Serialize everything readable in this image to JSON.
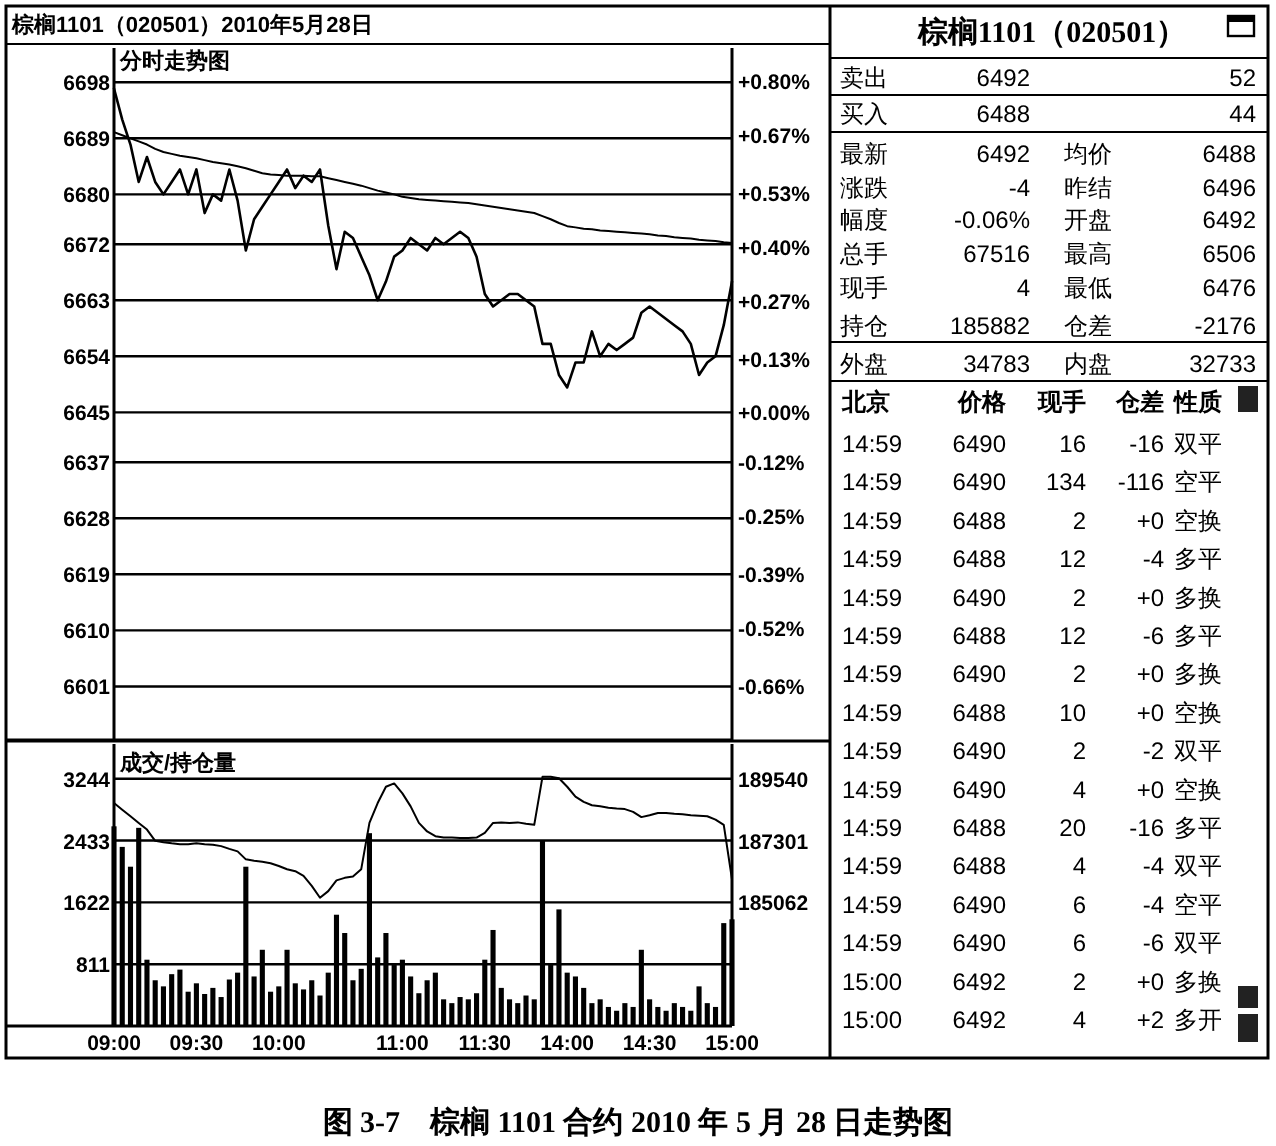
{
  "chart_data": [
    {
      "type": "line",
      "title": "分时走势图",
      "annotations": [
        "棕榈1101（020501）2010年5月28日",
        "图 3-7　棕榈 1101 合约 2010 年 5 月 28 日走势图"
      ],
      "categories": [
        null,
        null,
        null,
        null,
        null,
        null,
        null,
        null,
        null,
        null,
        null,
        null,
        null,
        null,
        null,
        null,
        null,
        null,
        null,
        null,
        null,
        null,
        null,
        null,
        null,
        null,
        null,
        null,
        null,
        null,
        null,
        null,
        null,
        null,
        null,
        null,
        null,
        null,
        null,
        null,
        null,
        null,
        null,
        null,
        null,
        null,
        null,
        null,
        null,
        null,
        null,
        null,
        null,
        null,
        null,
        null,
        null,
        null,
        null,
        null,
        null,
        null,
        null,
        null,
        null,
        null,
        null,
        null,
        null,
        null,
        null,
        null,
        null,
        null,
        null,
        null
      ],
      "series": [
        {
          "color": "#000000",
          "values": [
            6697,
            6692,
            6688,
            6682,
            6686,
            6682,
            6680,
            6682,
            6684,
            6680,
            6684,
            6677,
            6680,
            6679,
            6684,
            6679,
            6671,
            6676,
            6678,
            6680,
            6682,
            6684,
            6681,
            6683,
            6682,
            6684,
            6675,
            6668,
            6674,
            6673,
            6670,
            6667,
            6663,
            6666,
            6670,
            6671,
            6673,
            6672,
            6671,
            6673,
            6672,
            6673,
            6674,
            6673,
            6670,
            6664,
            6662,
            6663,
            6664,
            6664,
            6663,
            6662,
            6656,
            6656,
            6651,
            6649,
            6653,
            6653,
            6658,
            6654,
            6656,
            6655,
            6656,
            6657,
            6661,
            6662,
            6661,
            6660,
            6659,
            6658,
            6656,
            6651,
            6653,
            6654,
            6659,
            6666
          ]
        },
        {
          "color": "#000000",
          "values": [
            6690,
            6689.5,
            6689,
            6688.5,
            6688,
            6687.3,
            6686.8,
            6686.5,
            6686.2,
            6686,
            6685.8,
            6685.5,
            6685.2,
            6685,
            6684.8,
            6684.5,
            6684.2,
            6683.8,
            6683.4,
            6683.2,
            6683.1,
            6683,
            6683,
            6683,
            6682.9,
            6682.9,
            6682.6,
            6682.3,
            6682,
            6681.7,
            6681.4,
            6681,
            6680.6,
            6680.3,
            6680,
            6679.6,
            6679.4,
            6679.2,
            6679.1,
            6679,
            6678.9,
            6678.8,
            6678.7,
            6678.6,
            6678.4,
            6678.2,
            6678,
            6677.8,
            6677.6,
            6677.4,
            6677.2,
            6677,
            6676.5,
            6676,
            6675.4,
            6674.9,
            6674.7,
            6674.5,
            6674.4,
            6674.2,
            6674.1,
            6674,
            6673.9,
            6673.8,
            6673.7,
            6673.6,
            6673.4,
            6673.3,
            6673.1,
            6673,
            6672.9,
            6672.7,
            6672.6,
            6672.5,
            6672.3,
            6672.2
          ]
        }
      ],
      "ylim": [
        6592.4,
        6703.5
      ],
      "yticks": [
        6601,
        6610,
        6619,
        6628,
        6637,
        6645,
        6654,
        6663,
        6672,
        6680,
        6689,
        6698
      ],
      "y2lim": [
        -0.7916,
        0.8804
      ],
      "y2ticks": [
        {
          "value": -0.66,
          "label": "-0.66%"
        },
        {
          "value": -0.52,
          "label": "-0.52%"
        },
        {
          "value": -0.39,
          "label": "-0.39%"
        },
        {
          "value": -0.25,
          "label": "-0.25%"
        },
        {
          "value": -0.12,
          "label": "-0.12%"
        },
        {
          "value": 0,
          "label": "+0.00%"
        },
        {
          "value": 0.13,
          "label": "+0.13%"
        },
        {
          "value": 0.27,
          "label": "+0.27%"
        },
        {
          "value": 0.4,
          "label": "+0.40%"
        },
        {
          "value": 0.53,
          "label": "+0.53%"
        },
        {
          "value": 0.67,
          "label": "+0.67%"
        },
        {
          "value": 0.8,
          "label": "+0.80%"
        }
      ],
      "grid": "y"
    },
    {
      "type": "bar",
      "title": "成交/持仓量",
      "categories": [
        "09:00",
        null,
        null,
        null,
        null,
        null,
        null,
        null,
        null,
        null,
        "09:30",
        null,
        null,
        null,
        null,
        null,
        null,
        null,
        null,
        null,
        "10:00",
        null,
        null,
        null,
        null,
        null,
        null,
        null,
        null,
        null,
        null,
        null,
        null,
        null,
        null,
        "11:00",
        null,
        null,
        null,
        null,
        null,
        null,
        null,
        null,
        null,
        "11:30",
        null,
        null,
        null,
        null,
        null,
        null,
        null,
        null,
        null,
        "14:00",
        null,
        null,
        null,
        null,
        null,
        null,
        null,
        null,
        null,
        "14:30",
        null,
        null,
        null,
        null,
        null,
        null,
        null,
        null,
        null,
        "15:00"
      ],
      "series": [
        {
          "type": "bar",
          "color": "#000000",
          "values": [
            2620,
            2350,
            2090,
            2600,
            870,
            600,
            520,
            680,
            740,
            450,
            560,
            420,
            500,
            380,
            610,
            700,
            2090,
            650,
            1000,
            450,
            520,
            1000,
            560,
            480,
            600,
            400,
            700,
            1460,
            1220,
            600,
            750,
            2530,
            900,
            1220,
            800,
            870,
            650,
            430,
            600,
            700,
            350,
            300,
            380,
            350,
            430,
            870,
            1260,
            500,
            350,
            300,
            400,
            350,
            2440,
            800,
            1530,
            700,
            650,
            500,
            300,
            350,
            250,
            200,
            300,
            250,
            1000,
            350,
            250,
            200,
            300,
            250,
            200,
            520,
            300,
            250,
            1350,
            1400
          ]
        },
        {
          "type": "line",
          "axis": "y2",
          "color": "#000000",
          "values": [
            188660,
            188420,
            188180,
            187940,
            187700,
            187290,
            187240,
            187200,
            187170,
            187170,
            187200,
            187170,
            187150,
            187100,
            187000,
            186910,
            186620,
            186570,
            186530,
            186480,
            186380,
            186260,
            186190,
            186020,
            185660,
            185230,
            185470,
            185860,
            185950,
            186000,
            186260,
            187940,
            188660,
            189250,
            189370,
            189010,
            188540,
            187940,
            187630,
            187460,
            187410,
            187410,
            187390,
            187390,
            187410,
            187580,
            187940,
            187960,
            187940,
            187960,
            187910,
            187870,
            189610,
            189610,
            189560,
            189250,
            188890,
            188700,
            188580,
            188540,
            188490,
            188460,
            188440,
            188340,
            188150,
            188220,
            188300,
            188300,
            188270,
            188250,
            188220,
            188200,
            188180,
            188060,
            187870,
            185900
          ]
        }
      ],
      "ylim": [
        0,
        3700
      ],
      "yticks": [
        811,
        1622,
        2433,
        3244
      ],
      "y2lim": [
        180584,
        190799
      ],
      "y2ticks": [
        185062,
        187301,
        189540
      ],
      "grid": "y"
    },
    {
      "type": "other",
      "title": "棕榈1101（020501）",
      "annotations": [
        "卖出",
        "6492",
        "52",
        "买入",
        "6488",
        "44",
        "最新",
        "6492",
        "均价",
        "6488",
        "涨跌",
        "-4",
        "昨结",
        "6496",
        "幅度",
        "-0.06%",
        "开盘",
        "6492",
        "总手",
        "67516",
        "最高",
        "6506",
        "现手",
        "4",
        "最低",
        "6476",
        "持仓",
        "185882",
        "仓差",
        "-2176",
        "外盘",
        "34783",
        "内盘",
        "32733"
      ]
    },
    {
      "type": "other",
      "categories": [
        "北京",
        "价格",
        "现手",
        "仓差",
        "性质"
      ],
      "annotations": [
        "14:59",
        "6490",
        "16",
        "-16",
        "双平",
        "14:59",
        "6490",
        "134",
        "-116",
        "空平",
        "14:59",
        "6488",
        "2",
        "+0",
        "空换",
        "14:59",
        "6488",
        "12",
        "-4",
        "多平",
        "14:59",
        "6490",
        "2",
        "+0",
        "多换",
        "14:59",
        "6488",
        "12",
        "-6",
        "多平",
        "14:59",
        "6490",
        "2",
        "+0",
        "多换",
        "14:59",
        "6488",
        "10",
        "+0",
        "空换",
        "14:59",
        "6490",
        "2",
        "-2",
        "双平",
        "14:59",
        "6490",
        "4",
        "+0",
        "空换",
        "14:59",
        "6488",
        "20",
        "-16",
        "多平",
        "14:59",
        "6488",
        "4",
        "-4",
        "双平",
        "14:59",
        "6490",
        "6",
        "-4",
        "空平",
        "14:59",
        "6490",
        "6",
        "-6",
        "双平",
        "15:00",
        "6492",
        "2",
        "+0",
        "多换",
        "15:00",
        "6492",
        "4",
        "+2",
        "多开"
      ]
    }
  ]
}
